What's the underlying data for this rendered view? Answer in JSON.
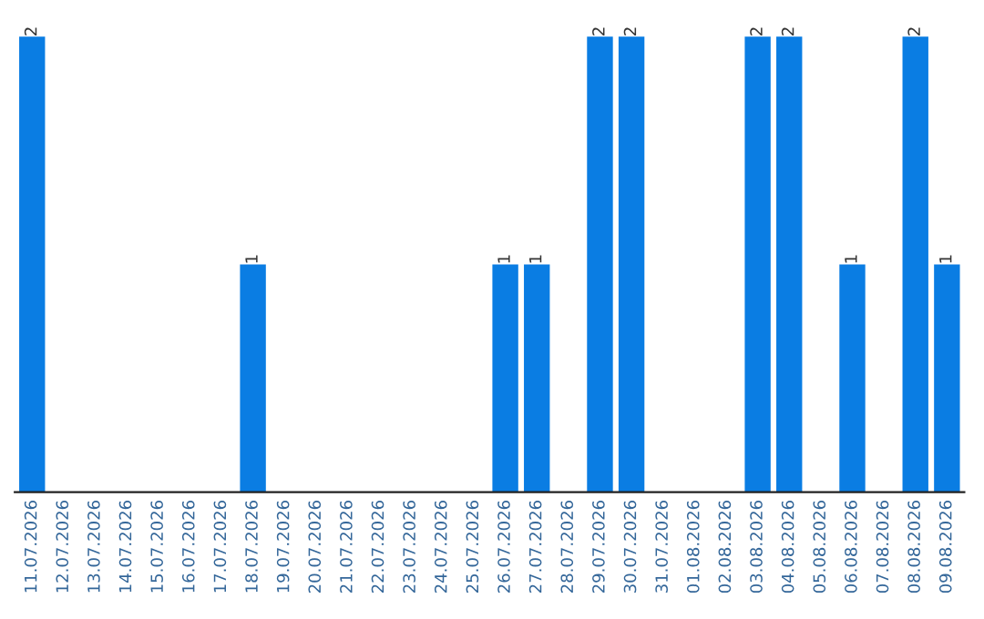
{
  "chart_data": {
    "type": "bar",
    "categories": [
      "11.07.2026",
      "12.07.2026",
      "13.07.2026",
      "14.07.2026",
      "15.07.2026",
      "16.07.2026",
      "17.07.2026",
      "18.07.2026",
      "19.07.2026",
      "20.07.2026",
      "21.07.2026",
      "22.07.2026",
      "23.07.2026",
      "24.07.2026",
      "25.07.2026",
      "26.07.2026",
      "27.07.2026",
      "28.07.2026",
      "29.07.2026",
      "30.07.2026",
      "31.07.2026",
      "01.08.2026",
      "02.08.2026",
      "03.08.2026",
      "04.08.2026",
      "05.08.2026",
      "06.08.2026",
      "07.08.2026",
      "08.08.2026",
      "09.08.2026"
    ],
    "values": [
      2,
      0,
      0,
      0,
      0,
      0,
      0,
      1,
      0,
      0,
      0,
      0,
      0,
      0,
      0,
      1,
      1,
      0,
      2,
      2,
      0,
      0,
      0,
      2,
      2,
      0,
      1,
      0,
      2,
      1
    ],
    "value_labels": [
      "2",
      null,
      null,
      null,
      null,
      null,
      null,
      "1",
      null,
      null,
      null,
      null,
      null,
      null,
      null,
      "1",
      "1",
      null,
      "2",
      "2",
      null,
      null,
      null,
      "2",
      "2",
      null,
      "1",
      null,
      "2",
      "1"
    ],
    "color": "#0a7de3"
  }
}
